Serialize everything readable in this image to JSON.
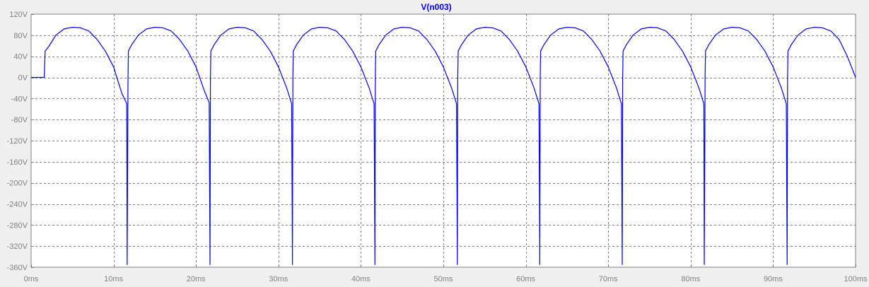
{
  "chart_data": {
    "type": "line",
    "title": "V(n003)",
    "xlabel": "",
    "ylabel": "",
    "xlim": [
      0,
      100
    ],
    "ylim": [
      -360,
      120
    ],
    "x_tick_labels": [
      "0ms",
      "10ms",
      "20ms",
      "30ms",
      "40ms",
      "50ms",
      "60ms",
      "70ms",
      "80ms",
      "90ms",
      "100ms"
    ],
    "x_ticks": [
      0,
      10,
      20,
      30,
      40,
      50,
      60,
      70,
      80,
      90,
      100
    ],
    "y_tick_labels": [
      "120V",
      "80V",
      "40V",
      "0V",
      "-40V",
      "-80V",
      "-120V",
      "-160V",
      "-200V",
      "-240V",
      "-280V",
      "-320V",
      "-360V"
    ],
    "y_ticks": [
      120,
      80,
      40,
      0,
      -40,
      -80,
      -120,
      -160,
      -200,
      -240,
      -280,
      -320,
      -360
    ],
    "grid": true,
    "colors": {
      "trace": "#0000ff",
      "grid": "#808080",
      "tick_text": "#808080",
      "title": "#0000ff",
      "plot_bg": "#ffffff",
      "frame_bg": "#f0f0f0"
    },
    "series": [
      {
        "name": "V(n003)",
        "points": [
          [
            0,
            0
          ],
          [
            1.6,
            0
          ],
          [
            1.7,
            50
          ],
          [
            2.2,
            60
          ],
          [
            3,
            80
          ],
          [
            4,
            92
          ],
          [
            5,
            95
          ],
          [
            6,
            94
          ],
          [
            7,
            88
          ],
          [
            8,
            72
          ],
          [
            9,
            50
          ],
          [
            10,
            20
          ],
          [
            11,
            -30
          ],
          [
            11.6,
            -50
          ],
          [
            11.65,
            -355
          ],
          [
            11.75,
            -10
          ],
          [
            11.8,
            50
          ],
          [
            12.2,
            62
          ],
          [
            13,
            80
          ],
          [
            14,
            92
          ],
          [
            15,
            95
          ],
          [
            16,
            94
          ],
          [
            17,
            88
          ],
          [
            18,
            72
          ],
          [
            19,
            50
          ],
          [
            20,
            20
          ],
          [
            21,
            -25
          ],
          [
            21.6,
            -48
          ],
          [
            21.65,
            -200
          ],
          [
            21.7,
            -355
          ],
          [
            21.75,
            0
          ],
          [
            21.8,
            50
          ],
          [
            22.2,
            62
          ],
          [
            23,
            80
          ],
          [
            24,
            92
          ],
          [
            25,
            95
          ],
          [
            26,
            94
          ],
          [
            27,
            88
          ],
          [
            28,
            72
          ],
          [
            29,
            50
          ],
          [
            30,
            20
          ],
          [
            31,
            -20
          ],
          [
            31.6,
            -50
          ],
          [
            31.65,
            -200
          ],
          [
            31.7,
            -355
          ],
          [
            31.75,
            0
          ],
          [
            31.8,
            50
          ],
          [
            32.2,
            62
          ],
          [
            33,
            80
          ],
          [
            34,
            92
          ],
          [
            35,
            95
          ],
          [
            36,
            94
          ],
          [
            37,
            88
          ],
          [
            38,
            72
          ],
          [
            39,
            50
          ],
          [
            40,
            20
          ],
          [
            41,
            -20
          ],
          [
            41.6,
            -50
          ],
          [
            41.65,
            -200
          ],
          [
            41.7,
            -355
          ],
          [
            41.75,
            0
          ],
          [
            41.8,
            50
          ],
          [
            42.2,
            62
          ],
          [
            43,
            80
          ],
          [
            44,
            92
          ],
          [
            45,
            95
          ],
          [
            46,
            94
          ],
          [
            47,
            88
          ],
          [
            48,
            72
          ],
          [
            49,
            50
          ],
          [
            50,
            20
          ],
          [
            51,
            -20
          ],
          [
            51.6,
            -50
          ],
          [
            51.65,
            -200
          ],
          [
            51.7,
            -355
          ],
          [
            51.75,
            0
          ],
          [
            51.8,
            50
          ],
          [
            52.2,
            62
          ],
          [
            53,
            80
          ],
          [
            54,
            92
          ],
          [
            55,
            95
          ],
          [
            56,
            94
          ],
          [
            57,
            88
          ],
          [
            58,
            72
          ],
          [
            59,
            50
          ],
          [
            60,
            20
          ],
          [
            61,
            -20
          ],
          [
            61.6,
            -50
          ],
          [
            61.65,
            -200
          ],
          [
            61.7,
            -355
          ],
          [
            61.75,
            0
          ],
          [
            61.8,
            50
          ],
          [
            62.2,
            62
          ],
          [
            63,
            80
          ],
          [
            64,
            92
          ],
          [
            65,
            95
          ],
          [
            66,
            94
          ],
          [
            67,
            88
          ],
          [
            68,
            72
          ],
          [
            69,
            50
          ],
          [
            70,
            20
          ],
          [
            71,
            -20
          ],
          [
            71.6,
            -50
          ],
          [
            71.7,
            -355
          ],
          [
            71.75,
            0
          ],
          [
            71.8,
            50
          ],
          [
            72.2,
            62
          ],
          [
            73,
            80
          ],
          [
            74,
            92
          ],
          [
            75,
            95
          ],
          [
            76,
            94
          ],
          [
            77,
            88
          ],
          [
            78,
            72
          ],
          [
            79,
            50
          ],
          [
            80,
            20
          ],
          [
            81,
            -20
          ],
          [
            81.6,
            -50
          ],
          [
            81.65,
            -355
          ],
          [
            81.75,
            0
          ],
          [
            81.8,
            50
          ],
          [
            82.2,
            62
          ],
          [
            83,
            80
          ],
          [
            84,
            92
          ],
          [
            85,
            95
          ],
          [
            86,
            94
          ],
          [
            87,
            88
          ],
          [
            88,
            72
          ],
          [
            89,
            50
          ],
          [
            90,
            20
          ],
          [
            91,
            -20
          ],
          [
            91.6,
            -50
          ],
          [
            91.65,
            -200
          ],
          [
            91.7,
            -355
          ],
          [
            91.75,
            0
          ],
          [
            91.8,
            50
          ],
          [
            92.2,
            62
          ],
          [
            93,
            80
          ],
          [
            94,
            92
          ],
          [
            95,
            95
          ],
          [
            96,
            94
          ],
          [
            97,
            88
          ],
          [
            98,
            72
          ],
          [
            99,
            40
          ],
          [
            100,
            0
          ]
        ]
      }
    ]
  }
}
